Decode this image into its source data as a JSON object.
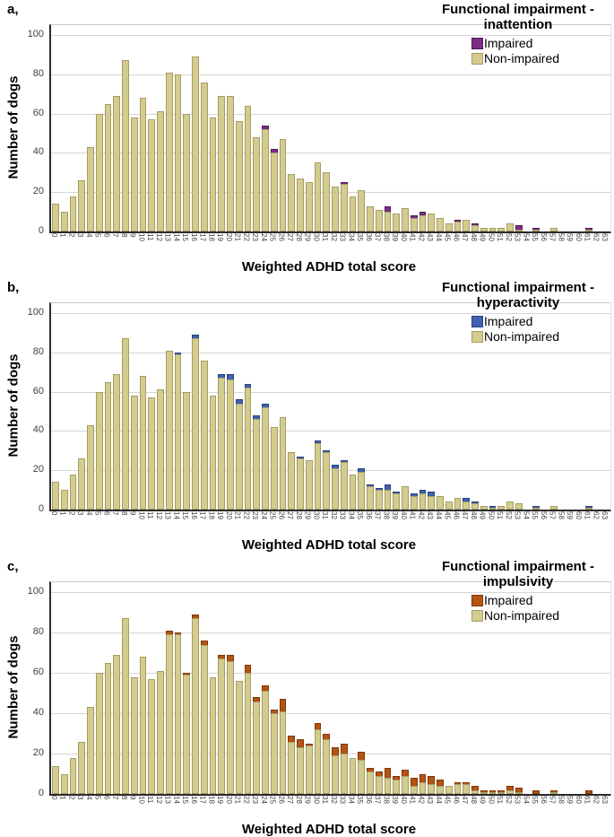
{
  "chart_data": {
    "type": "bar",
    "stacked": true,
    "grid": "horizontal",
    "legend_position": "top-right-inside",
    "xlabel": "Weighted ADHD total score",
    "ylabel": "Number of dogs",
    "ylim": [
      0,
      105
    ],
    "yticks": [
      0,
      20,
      40,
      60,
      80,
      100
    ],
    "categories": [
      0,
      1,
      2,
      3,
      4,
      5,
      6,
      7,
      8,
      9,
      10,
      11,
      12,
      13,
      14,
      15,
      16,
      17,
      18,
      19,
      20,
      21,
      22,
      23,
      24,
      25,
      26,
      27,
      28,
      29,
      30,
      31,
      32,
      33,
      34,
      35,
      36,
      37,
      38,
      39,
      40,
      41,
      42,
      43,
      44,
      45,
      46,
      47,
      48,
      49,
      50,
      51,
      52,
      53,
      54,
      55,
      56,
      57,
      58,
      59,
      60,
      61,
      62,
      63
    ],
    "legend_items": [
      "Impaired",
      "Non-impaired"
    ],
    "non_impaired_color": "#D4CC8F",
    "non_impaired_border": "#A59D62",
    "totals": [
      14,
      10,
      18,
      26,
      43,
      60,
      65,
      69,
      87,
      58,
      68,
      57,
      61,
      81,
      80,
      60,
      89,
      76,
      58,
      69,
      69,
      56,
      64,
      48,
      54,
      42,
      47,
      29,
      27,
      25,
      35,
      30,
      23,
      25,
      18,
      21,
      13,
      11,
      13,
      9,
      12,
      8,
      10,
      9,
      7,
      4,
      6,
      6,
      4,
      2,
      2,
      2,
      4,
      3,
      0,
      2,
      0,
      2,
      0,
      0,
      0,
      2,
      0,
      0
    ],
    "panels": [
      {
        "panel_label": "a,",
        "legend_title_line1": "Functional impairment -",
        "legend_title_line2": "inattention",
        "impaired_color": "#7B2D86",
        "impaired_border": "#4C1B54",
        "impaired": [
          0,
          0,
          0,
          0,
          0,
          0,
          0,
          0,
          0,
          0,
          0,
          0,
          0,
          0,
          0,
          0,
          0,
          0,
          0,
          0,
          0,
          0,
          0,
          0,
          2,
          2,
          0,
          0,
          0,
          0,
          0,
          0,
          0,
          1,
          0,
          0,
          0,
          0,
          3,
          0,
          0,
          1,
          2,
          0,
          0,
          0,
          1,
          0,
          1,
          0,
          0,
          0,
          0,
          2,
          0,
          1,
          0,
          0,
          0,
          0,
          0,
          1,
          0,
          0
        ]
      },
      {
        "panel_label": "b,",
        "legend_title_line1": "Functional impairment -",
        "legend_title_line2": "hyperactivity",
        "impaired_color": "#4161B2",
        "impaired_border": "#27407B",
        "impaired": [
          0,
          0,
          0,
          0,
          0,
          0,
          0,
          0,
          0,
          0,
          0,
          0,
          0,
          0,
          1,
          0,
          2,
          0,
          0,
          2,
          3,
          2,
          2,
          2,
          2,
          0,
          0,
          0,
          1,
          0,
          1,
          1,
          2,
          1,
          0,
          2,
          1,
          1,
          3,
          1,
          0,
          1,
          2,
          2,
          0,
          0,
          0,
          2,
          1,
          0,
          1,
          0,
          0,
          0,
          0,
          1,
          0,
          0,
          0,
          0,
          0,
          1,
          0,
          0
        ]
      },
      {
        "panel_label": "c,",
        "legend_title_line1": "Functional impairment -",
        "legend_title_line2": "impulsivity",
        "impaired_color": "#B5530F",
        "impaired_border": "#7A3707",
        "impaired": [
          0,
          0,
          0,
          0,
          0,
          0,
          0,
          0,
          0,
          0,
          0,
          0,
          0,
          2,
          1,
          1,
          2,
          2,
          0,
          2,
          3,
          0,
          4,
          2,
          3,
          2,
          6,
          3,
          4,
          1,
          3,
          3,
          4,
          5,
          0,
          4,
          2,
          2,
          5,
          2,
          3,
          4,
          4,
          4,
          3,
          0,
          1,
          1,
          2,
          1,
          1,
          1,
          2,
          2,
          0,
          2,
          0,
          1,
          0,
          0,
          0,
          2,
          0,
          0
        ]
      }
    ]
  }
}
